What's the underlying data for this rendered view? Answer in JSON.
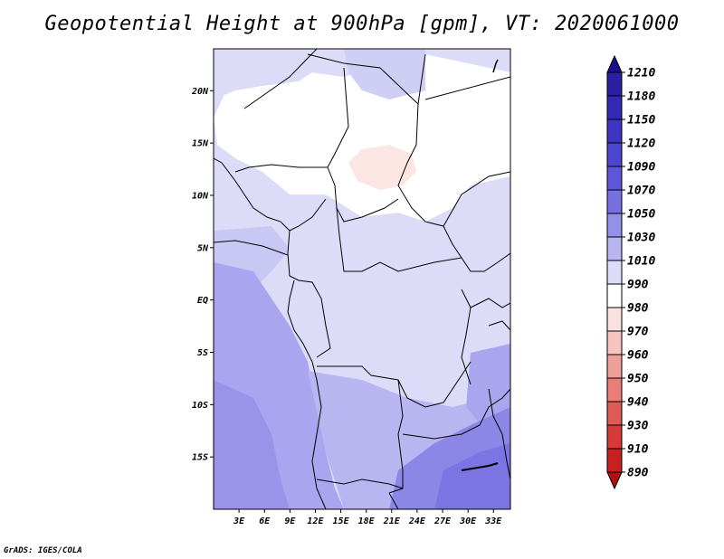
{
  "title": "Geopotential Height at 900hPa [gpm], VT: 2020061000",
  "credit": "GrADS: IGES/COLA",
  "map": {
    "lon_range": [
      0,
      35
    ],
    "lat_range": [
      -20,
      24
    ],
    "lat_ticks": [
      {
        "value": 20,
        "label": "20N"
      },
      {
        "value": 15,
        "label": "15N"
      },
      {
        "value": 10,
        "label": "10N"
      },
      {
        "value": 5,
        "label": "5N"
      },
      {
        "value": 0,
        "label": "EQ"
      },
      {
        "value": -5,
        "label": "5S"
      },
      {
        "value": -10,
        "label": "10S"
      },
      {
        "value": -15,
        "label": "15S"
      }
    ],
    "lon_ticks": [
      {
        "value": 3,
        "label": "3E"
      },
      {
        "value": 6,
        "label": "6E"
      },
      {
        "value": 9,
        "label": "9E"
      },
      {
        "value": 12,
        "label": "12E"
      },
      {
        "value": 15,
        "label": "15E"
      },
      {
        "value": 18,
        "label": "18E"
      },
      {
        "value": 21,
        "label": "21E"
      },
      {
        "value": 24,
        "label": "24E"
      },
      {
        "value": 27,
        "label": "27E"
      },
      {
        "value": 30,
        "label": "30E"
      },
      {
        "value": 33,
        "label": "33E"
      }
    ]
  },
  "colorbar": {
    "labels": [
      "1210",
      "1180",
      "1150",
      "1120",
      "1090",
      "1070",
      "1050",
      "1030",
      "1010",
      "990",
      "980",
      "970",
      "960",
      "950",
      "940",
      "930",
      "910",
      "890"
    ],
    "colors": [
      "#1e0f8c",
      "#2a1fa0",
      "#3428b4",
      "#3f35c4",
      "#4c45cf",
      "#5d57d8",
      "#7670e0",
      "#9590e8",
      "#b9b5f0",
      "#dcdcf8",
      "#ffffff",
      "#fbe2e0",
      "#f7c4c0",
      "#f0a09a",
      "#e87e77",
      "#df5a54",
      "#d63a36",
      "#c8201f",
      "#b01010"
    ]
  },
  "colors": {
    "frame": "#000000",
    "border": "#000000"
  }
}
